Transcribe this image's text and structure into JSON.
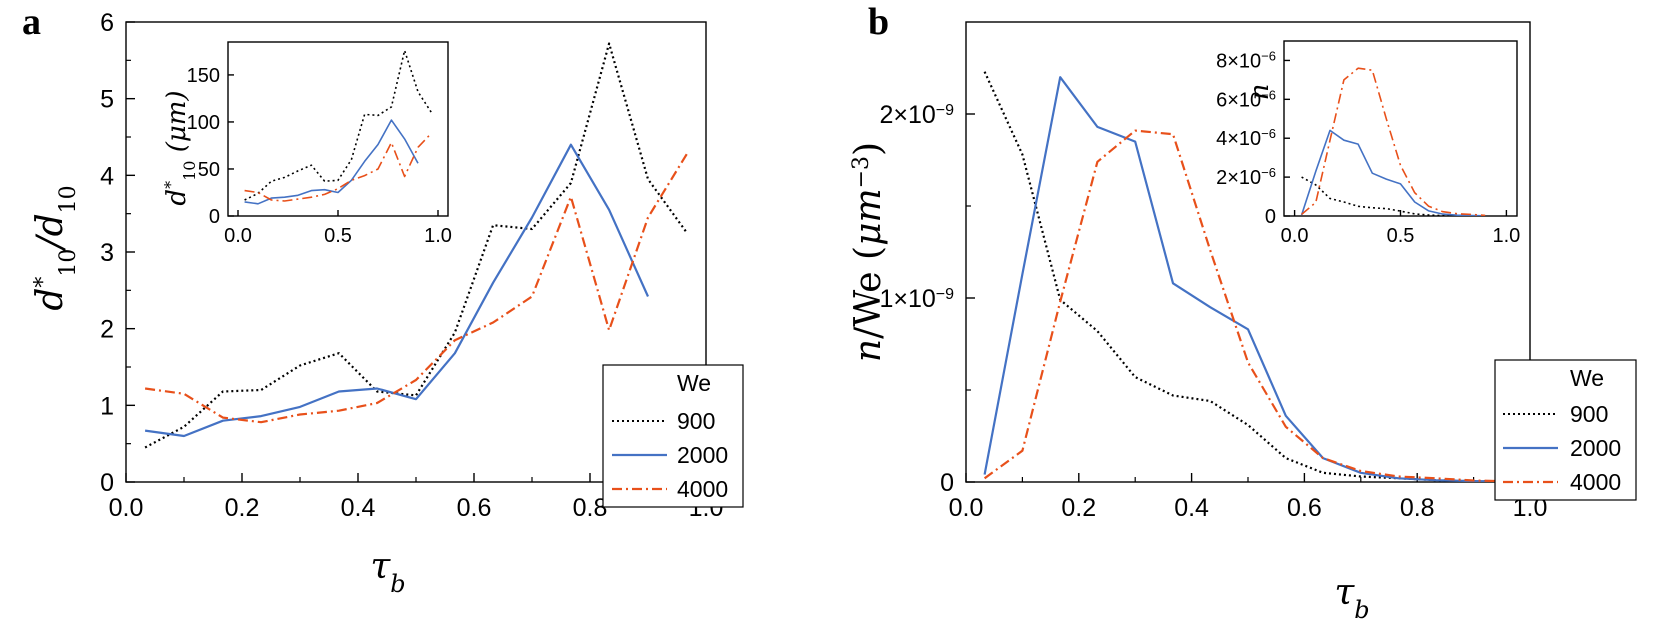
{
  "panels": {
    "a": {
      "label": "a",
      "ylabel": "d*10/d10",
      "xlabel": "τb",
      "legend": {
        "title": "We",
        "entries": [
          "900",
          "2000",
          "4000"
        ]
      },
      "inset_ylabel": "d*10 (μm)"
    },
    "b": {
      "label": "b",
      "ylabel": "n/We (μm⁻³)",
      "xlabel": "τb",
      "legend": {
        "title": "We",
        "entries": [
          "900",
          "2000",
          "4000"
        ]
      },
      "inset_ylabel": "n"
    }
  },
  "series_style": {
    "900": {
      "color": "#000000",
      "dash": "dotted"
    },
    "2000": {
      "color": "#4472c4",
      "dash": "solid"
    },
    "4000": {
      "color": "#e8501a",
      "dash": "dashdot"
    }
  },
  "chart_data": [
    {
      "id": "a-main",
      "type": "line",
      "xlabel": "τb",
      "ylabel": "d*10/d10",
      "xlim": [
        0,
        1.0
      ],
      "ylim": [
        0,
        6
      ],
      "xticks": [
        "0.0",
        "0.2",
        "0.4",
        "0.6",
        "0.8",
        "1.0"
      ],
      "yticks": [
        "0",
        "1",
        "2",
        "3",
        "4",
        "5",
        "6"
      ],
      "legend_position": "bottom-right",
      "legend_title": "We",
      "series": [
        {
          "name": "900",
          "x": [
            0.033,
            0.1,
            0.167,
            0.233,
            0.3,
            0.367,
            0.433,
            0.5,
            0.567,
            0.633,
            0.7,
            0.767,
            0.833,
            0.9,
            0.967
          ],
          "y": [
            0.45,
            0.72,
            1.18,
            1.2,
            1.52,
            1.68,
            1.18,
            1.13,
            1.95,
            3.35,
            3.3,
            3.9,
            5.72,
            3.95,
            3.25
          ]
        },
        {
          "name": "2000",
          "x": [
            0.033,
            0.1,
            0.167,
            0.233,
            0.3,
            0.367,
            0.433,
            0.5,
            0.567,
            0.633,
            0.7,
            0.767,
            0.833,
            0.9
          ],
          "y": [
            0.67,
            0.6,
            0.8,
            0.86,
            0.98,
            1.18,
            1.22,
            1.08,
            1.68,
            2.6,
            3.45,
            4.4,
            3.55,
            2.42
          ]
        },
        {
          "name": "4000",
          "x": [
            0.033,
            0.1,
            0.167,
            0.233,
            0.3,
            0.367,
            0.433,
            0.5,
            0.567,
            0.633,
            0.7,
            0.767,
            0.833,
            0.9,
            0.967
          ],
          "y": [
            1.22,
            1.15,
            0.84,
            0.78,
            0.88,
            0.93,
            1.03,
            1.33,
            1.85,
            2.08,
            2.42,
            3.72,
            1.98,
            3.45,
            4.28
          ]
        }
      ]
    },
    {
      "id": "a-inset",
      "type": "line",
      "xlabel": "",
      "ylabel": "d*10 (μm)",
      "xlim": [
        -0.05,
        1.05
      ],
      "ylim": [
        0,
        185
      ],
      "xticks": [
        "0.0",
        "0.5",
        "1.0"
      ],
      "yticks": [
        "0",
        "50",
        "100",
        "150"
      ],
      "series": [
        {
          "name": "900",
          "x": [
            0.033,
            0.1,
            0.167,
            0.233,
            0.3,
            0.367,
            0.433,
            0.5,
            0.567,
            0.633,
            0.7,
            0.767,
            0.833,
            0.9,
            0.967
          ],
          "y": [
            17,
            24,
            37,
            41,
            48,
            54,
            37,
            38,
            60,
            108,
            107,
            116,
            176,
            132,
            110
          ]
        },
        {
          "name": "2000",
          "x": [
            0.033,
            0.1,
            0.167,
            0.233,
            0.3,
            0.367,
            0.433,
            0.5,
            0.567,
            0.633,
            0.7,
            0.767,
            0.833,
            0.9
          ],
          "y": [
            15,
            13,
            19,
            20,
            22,
            27,
            28,
            25,
            38,
            58,
            76,
            102,
            82,
            56
          ]
        },
        {
          "name": "4000",
          "x": [
            0.033,
            0.1,
            0.167,
            0.233,
            0.3,
            0.367,
            0.433,
            0.5,
            0.567,
            0.633,
            0.7,
            0.767,
            0.833,
            0.9,
            0.967
          ],
          "y": [
            27,
            25,
            17,
            16,
            18,
            20,
            23,
            29,
            38,
            43,
            50,
            78,
            42,
            73,
            88
          ]
        }
      ]
    },
    {
      "id": "b-main",
      "type": "line",
      "xlabel": "τb",
      "ylabel": "n/We (μm⁻³)",
      "xlim": [
        0,
        1.0
      ],
      "ylim": [
        0,
        2.5e-09
      ],
      "xticks": [
        "0.0",
        "0.2",
        "0.4",
        "0.6",
        "0.8",
        "1.0"
      ],
      "yticks": [
        {
          "value": 0,
          "mantissa": "0",
          "exp": ""
        },
        {
          "value": 1e-09,
          "mantissa": "1×10",
          "exp": "−9"
        },
        {
          "value": 2e-09,
          "mantissa": "2×10",
          "exp": "−9"
        }
      ],
      "legend_position": "bottom-right",
      "legend_title": "We",
      "series": [
        {
          "name": "900",
          "x": [
            0.033,
            0.1,
            0.167,
            0.233,
            0.3,
            0.367,
            0.433,
            0.5,
            0.567,
            0.633,
            0.7,
            0.767,
            0.833,
            0.9,
            0.967
          ],
          "y": [
            2.23e-09,
            1.78e-09,
            9.9e-10,
            8.2e-10,
            5.7e-10,
            4.7e-10,
            4.4e-10,
            3.1e-10,
            1.3e-10,
            5e-11,
            3e-11,
            2e-11,
            1e-11,
            5e-12,
            2e-12
          ]
        },
        {
          "name": "2000",
          "x": [
            0.033,
            0.1,
            0.167,
            0.233,
            0.3,
            0.367,
            0.433,
            0.5,
            0.567,
            0.633,
            0.7,
            0.767,
            0.833,
            0.9,
            0.967
          ],
          "y": [
            4e-11,
            1.13e-09,
            2.2e-09,
            1.93e-09,
            1.85e-09,
            1.08e-09,
            9.5e-10,
            8.3e-10,
            3.6e-10,
            1.3e-10,
            5e-11,
            2e-11,
            1e-11,
            5e-12,
            2e-12
          ]
        },
        {
          "name": "4000",
          "x": [
            0.033,
            0.1,
            0.167,
            0.233,
            0.3,
            0.367,
            0.433,
            0.5,
            0.567,
            0.633,
            0.7,
            0.767,
            0.833,
            0.9,
            0.967
          ],
          "y": [
            2e-11,
            1.7e-10,
            9.8e-10,
            1.74e-09,
            1.91e-09,
            1.89e-09,
            1.26e-09,
            6.5e-10,
            3e-10,
            1.3e-10,
            6e-11,
            3e-11,
            2e-11,
            8e-12,
            3e-12
          ]
        }
      ]
    },
    {
      "id": "b-inset",
      "type": "line",
      "xlabel": "",
      "ylabel": "n",
      "xlim": [
        -0.05,
        1.05
      ],
      "ylim": [
        0,
        9e-06
      ],
      "xticks": [
        "0.0",
        "0.5",
        "1.0"
      ],
      "yticks": [
        {
          "value": 0,
          "mantissa": "0",
          "exp": ""
        },
        {
          "value": 2e-06,
          "mantissa": "2×10",
          "exp": "−6"
        },
        {
          "value": 4e-06,
          "mantissa": "4×10",
          "exp": "−6"
        },
        {
          "value": 6e-06,
          "mantissa": "6×10",
          "exp": "−6"
        },
        {
          "value": 8e-06,
          "mantissa": "8×10",
          "exp": "−6"
        }
      ],
      "series": [
        {
          "name": "900",
          "x": [
            0.033,
            0.1,
            0.167,
            0.233,
            0.3,
            0.367,
            0.433,
            0.5,
            0.567,
            0.633,
            0.7,
            0.767,
            0.833,
            0.9
          ],
          "y": [
            2e-06,
            1.6e-06,
            9e-07,
            7.2e-07,
            5e-07,
            4.2e-07,
            3.8e-07,
            2.5e-07,
            1.1e-07,
            5e-08,
            2e-08,
            1e-08,
            5e-09,
            2e-09
          ]
        },
        {
          "name": "2000",
          "x": [
            0.033,
            0.1,
            0.167,
            0.233,
            0.3,
            0.367,
            0.433,
            0.5,
            0.567,
            0.633,
            0.7,
            0.767,
            0.833,
            0.9
          ],
          "y": [
            5e-08,
            2.3e-06,
            4.4e-06,
            3.9e-06,
            3.7e-06,
            2.2e-06,
            1.9e-06,
            1.65e-06,
            7.2e-07,
            2.6e-07,
            1e-07,
            4e-08,
            2e-08,
            1e-08
          ]
        },
        {
          "name": "4000",
          "x": [
            0.033,
            0.1,
            0.167,
            0.233,
            0.3,
            0.367,
            0.433,
            0.5,
            0.567,
            0.633,
            0.7,
            0.767,
            0.833,
            0.9
          ],
          "y": [
            8e-08,
            7e-07,
            3.9e-06,
            7e-06,
            7.6e-06,
            7.5e-06,
            5e-06,
            2.6e-06,
            1.2e-06,
            5e-07,
            2.2e-07,
            1.2e-07,
            8e-08,
            3e-08
          ]
        }
      ]
    }
  ]
}
